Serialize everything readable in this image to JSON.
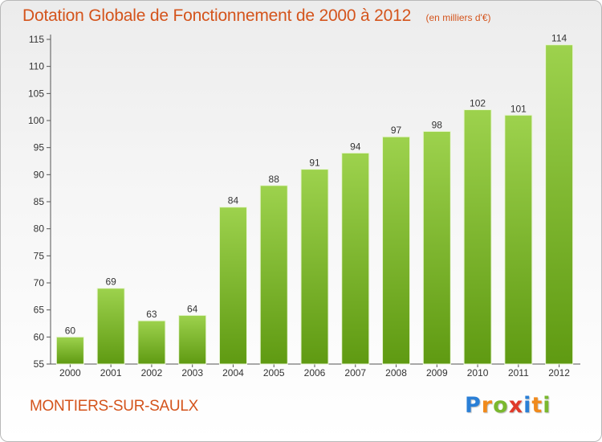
{
  "header": {
    "title": "Dotation Globale de Fonctionnement de 2000 à 2012",
    "unit": "(en milliers d'€)"
  },
  "footer": {
    "commune": "MONTIERS-SUR-SAULX",
    "logo_letters": [
      "P",
      "r",
      "o",
      "x",
      "i",
      "t",
      "i"
    ],
    "logo_colors": [
      "#2a7fd6",
      "#f08a1c",
      "#7ab82e",
      "#e03a2a",
      "#2a7fd6",
      "#f08a1c",
      "#7ab82e"
    ]
  },
  "chart_data": {
    "type": "bar",
    "title": "Dotation Globale de Fonctionnement de 2000 à 2012",
    "categories": [
      "2000",
      "2001",
      "2002",
      "2003",
      "2004",
      "2005",
      "2006",
      "2007",
      "2008",
      "2009",
      "2010",
      "2011",
      "2012"
    ],
    "values": [
      60,
      69,
      63,
      64,
      84,
      88,
      91,
      94,
      97,
      98,
      102,
      101,
      114
    ],
    "ylim": [
      55,
      115
    ],
    "yticks": [
      55,
      60,
      65,
      70,
      75,
      80,
      85,
      90,
      95,
      100,
      105,
      110,
      115
    ],
    "grid": false,
    "legend": "none",
    "colors": {
      "bar_top": "#9dd24d",
      "bar_bottom": "#5f9a12",
      "bar_edge": "#e9f5d5"
    }
  }
}
